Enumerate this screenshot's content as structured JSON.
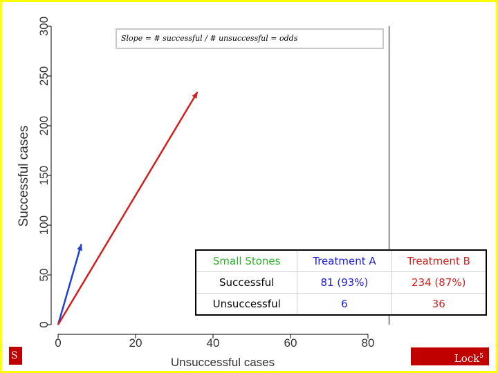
{
  "chart_data": {
    "type": "line",
    "title": "",
    "xlabel": "Unsuccessful cases",
    "ylabel": "Successful cases",
    "xlim": [
      0,
      85
    ],
    "ylim": [
      0,
      300
    ],
    "xticks": [
      0,
      20,
      40,
      60,
      80
    ],
    "yticks": [
      0,
      50,
      100,
      150,
      200,
      250,
      300
    ],
    "series": [
      {
        "name": "Treatment A (Small Stones)",
        "color": "#1f3fd6",
        "points": [
          [
            0,
            0
          ],
          [
            6,
            81
          ]
        ]
      },
      {
        "name": "Treatment B (Small Stones)",
        "color": "#d11f1f",
        "points": [
          [
            0,
            0
          ],
          [
            36,
            234
          ]
        ]
      }
    ],
    "annotation": "Slope = # successful / # unsuccessful = odds"
  },
  "table": {
    "header": {
      "label": "Small Stones",
      "col_a": "Treatment A",
      "col_b": "Treatment B"
    },
    "rows": [
      {
        "label": "Successful",
        "a": "81 (93%)",
        "b": "234 (87%)"
      },
      {
        "label": "Unsuccessful",
        "a": "6",
        "b": "36"
      }
    ],
    "colors": {
      "header_label": "#2eae2e",
      "treatment_a": "#1a1ad8",
      "treatment_b": "#d11f1f"
    }
  },
  "footer": {
    "left": "S",
    "right": "Lock",
    "right_sup": "5"
  }
}
